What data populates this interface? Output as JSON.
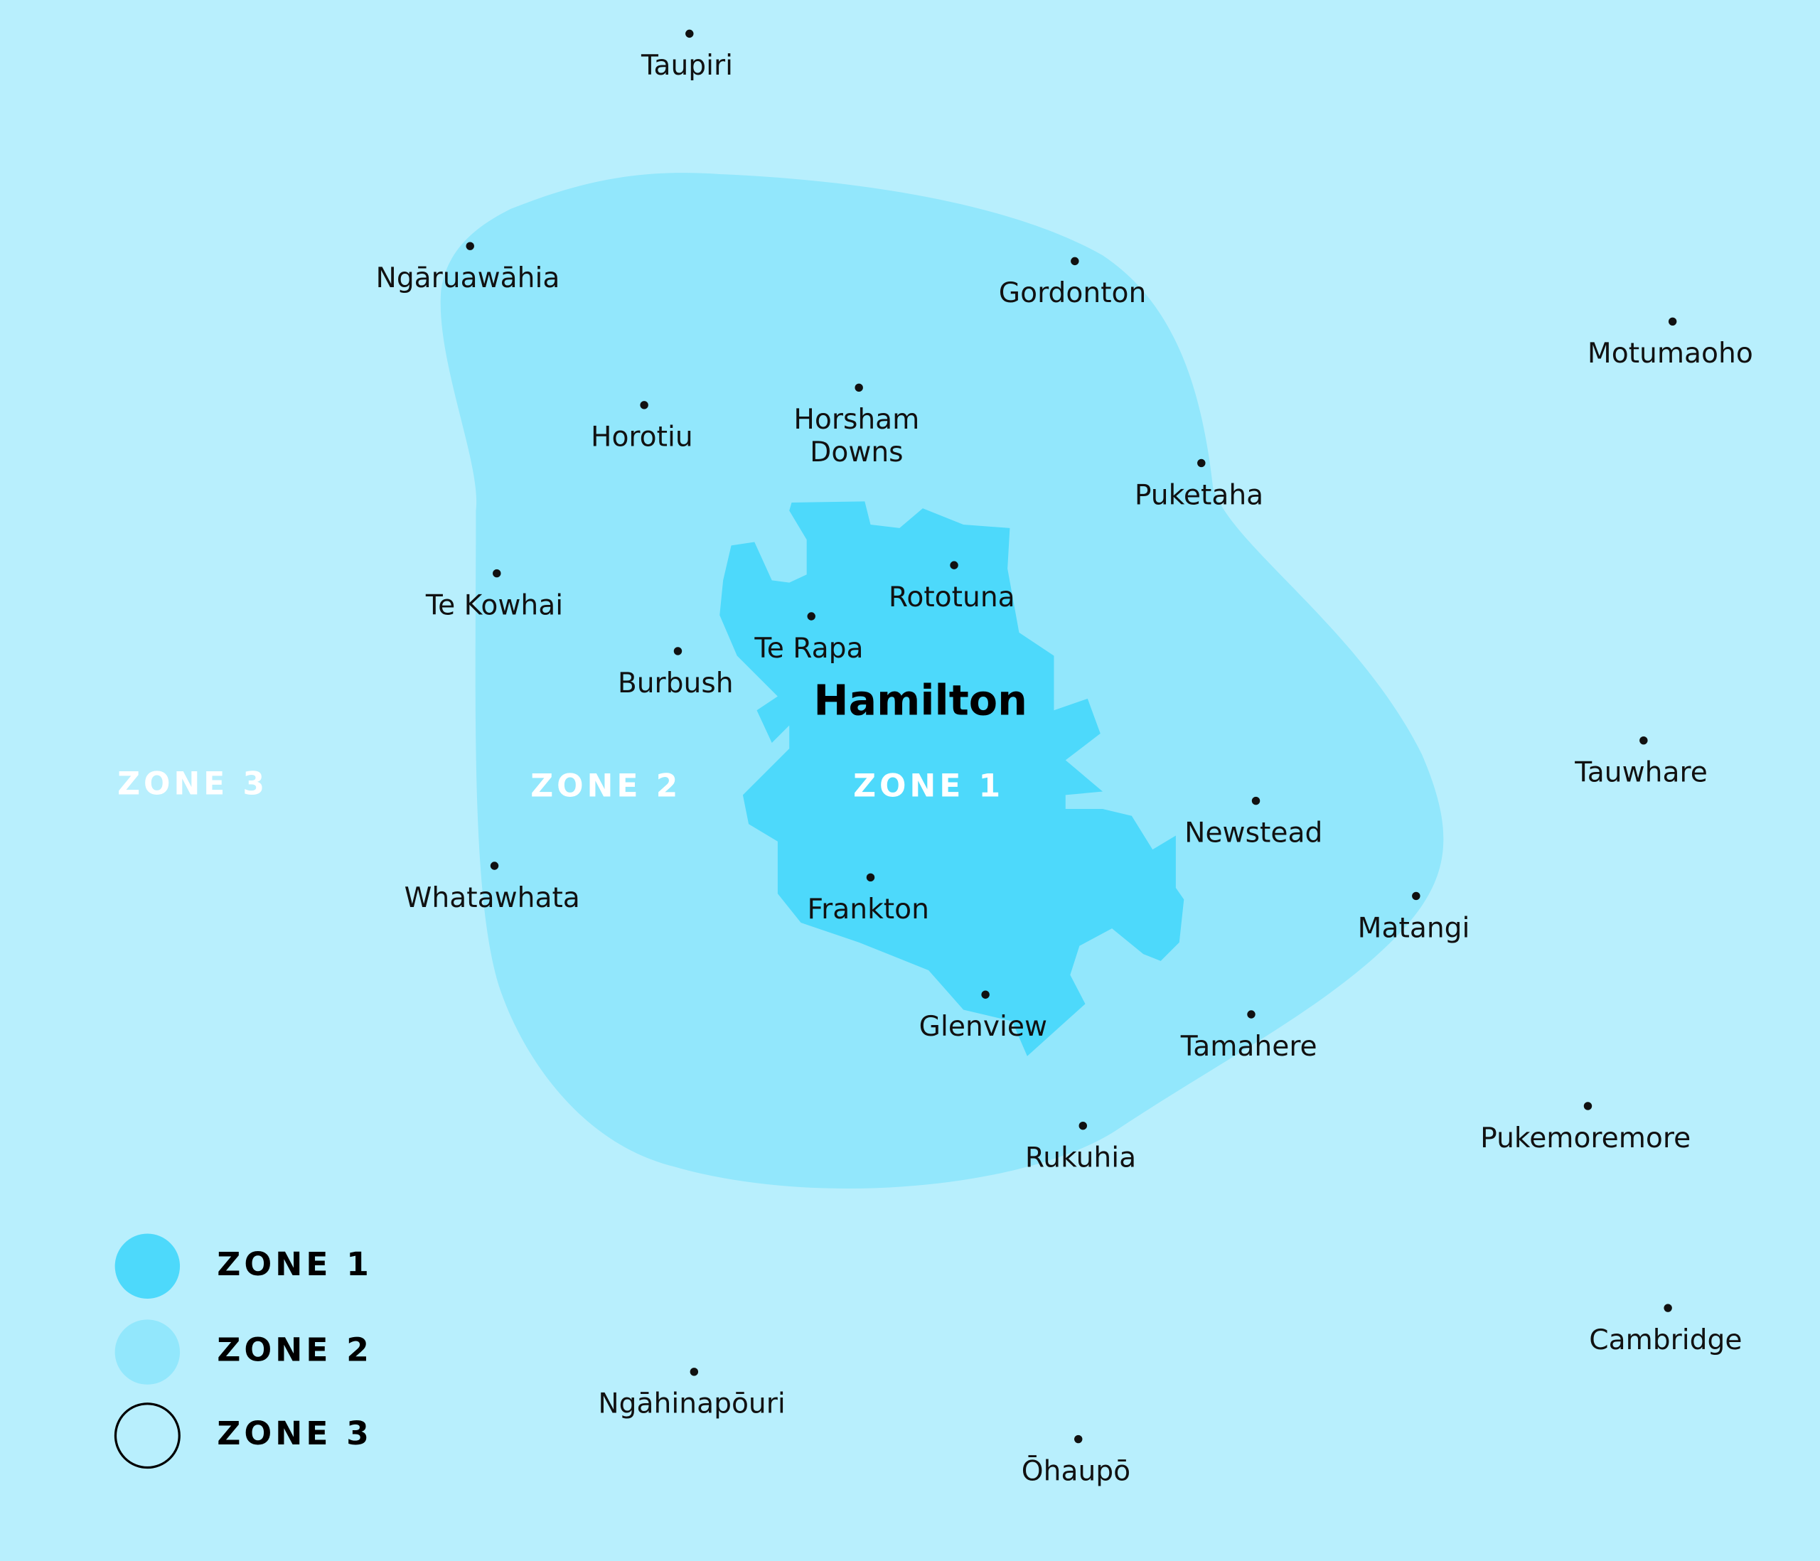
{
  "title": "Hamilton",
  "zone_labels": [
    "ZONE 3",
    "ZONE 2",
    "ZONE 1"
  ],
  "places": [
    [
      "Taupiri"
    ],
    [
      "Ngāruawāhia"
    ],
    [
      "Gordonton"
    ],
    [
      "Motumaoho"
    ],
    [
      "Horotiu"
    ],
    [
      "Horsham",
      "Downs"
    ],
    [
      "Puketaha"
    ],
    [
      "Te Kowhai"
    ],
    [
      "Rototuna"
    ],
    [
      "Te Rapa"
    ],
    [
      "Burbush"
    ],
    [
      "Tauwhare"
    ],
    [
      "Newstead"
    ],
    [
      "Whatawhata"
    ],
    [
      "Frankton"
    ],
    [
      "Matangi"
    ],
    [
      "Glenview"
    ],
    [
      "Tamahere"
    ],
    [
      "Pukemoremore"
    ],
    [
      "Rukuhia"
    ],
    [
      "Cambridge"
    ],
    [
      "Ngāhinapōuri"
    ],
    [
      "Ōhaupō"
    ]
  ],
  "legend": [
    "ZONE 1",
    "ZONE 2",
    "ZONE 3"
  ]
}
